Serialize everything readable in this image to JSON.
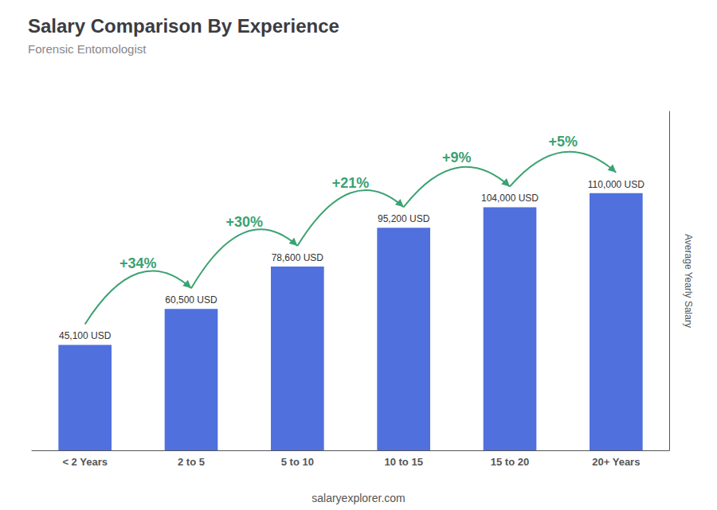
{
  "chart_data": {
    "type": "bar",
    "title": "Salary Comparison By Experience",
    "subtitle": "Forensic Entomologist",
    "ylabel": "Average Yearly Salary",
    "categories": [
      "< 2 Years",
      "2 to 5",
      "5 to 10",
      "10 to 15",
      "15 to 20",
      "20+ Years"
    ],
    "values": [
      45100,
      60500,
      78600,
      95200,
      104000,
      110000
    ],
    "value_labels": [
      "45,100 USD",
      "60,500 USD",
      "78,600 USD",
      "95,200 USD",
      "104,000 USD",
      "110,000 USD"
    ],
    "data_labels": true,
    "annotations": [
      "+34%",
      "+30%",
      "+21%",
      "+9%",
      "+5%"
    ],
    "watermark": "salaryexplorer.com",
    "ylim": [
      0,
      145000
    ],
    "grid": false,
    "tick_labels": "x"
  }
}
